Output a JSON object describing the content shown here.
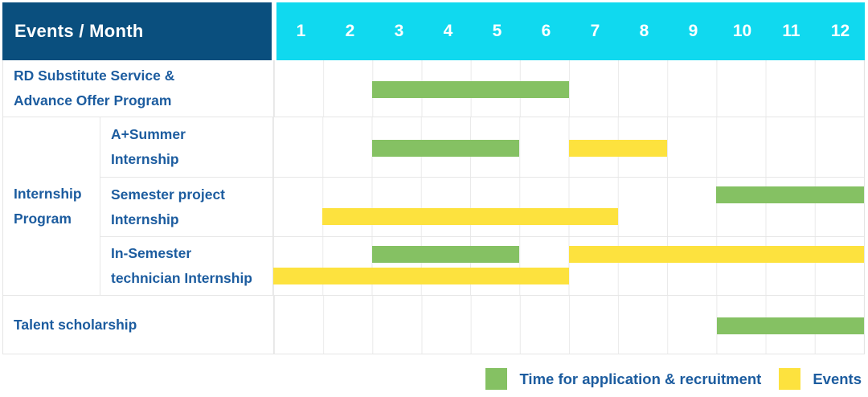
{
  "colors": {
    "header_bg": "#0a4f7e",
    "months_bg": "#10d9ef",
    "label_text": "#1c5c9f",
    "green": "#85c163",
    "yellow": "#fde23e",
    "grid_line": "#eaeaea"
  },
  "header": {
    "title": "Events / Month",
    "months": [
      "1",
      "2",
      "3",
      "4",
      "5",
      "6",
      "7",
      "8",
      "9",
      "10",
      "11",
      "12"
    ]
  },
  "rows": {
    "rd": {
      "label": "RD Substitute Service &\nAdvance Offer Program"
    },
    "internship_group": {
      "label": "Internship\nProgram"
    },
    "a_summer": {
      "label": "A+Summer\nInternship"
    },
    "semester_project": {
      "label": "Semester project\nInternship"
    },
    "in_semester": {
      "label": "In-Semester\ntechnician Internship"
    },
    "talent": {
      "label": "Talent scholarship"
    }
  },
  "legend": {
    "application": "Time for application & recruitment",
    "events": "Events"
  },
  "chart_data": {
    "type": "bar",
    "variant": "gantt",
    "title": "Events / Month",
    "x_axis": {
      "label": "Month",
      "ticks": [
        1,
        2,
        3,
        4,
        5,
        6,
        7,
        8,
        9,
        10,
        11,
        12
      ],
      "range": [
        1,
        13
      ],
      "grid": true
    },
    "series_colors": {
      "Time for application & recruitment": "#85c163",
      "Events": "#fde23e"
    },
    "rows": [
      {
        "category": "RD Substitute Service & Advance Offer Program",
        "bars": [
          {
            "series": "Time for application & recruitment",
            "start": 3,
            "end": 7,
            "lane": "mid"
          }
        ]
      },
      {
        "category": "Internship Program / A+Summer Internship",
        "bars": [
          {
            "series": "Time for application & recruitment",
            "start": 3,
            "end": 6,
            "lane": "mid"
          },
          {
            "series": "Events",
            "start": 7,
            "end": 9,
            "lane": "mid"
          }
        ]
      },
      {
        "category": "Internship Program / Semester project Internship",
        "bars": [
          {
            "series": "Time for application & recruitment",
            "start": 10,
            "end": 13,
            "lane": "upper"
          },
          {
            "series": "Events",
            "start": 2,
            "end": 8,
            "lane": "lower"
          }
        ]
      },
      {
        "category": "Internship Program / In-Semester technician Internship",
        "bars": [
          {
            "series": "Time for application & recruitment",
            "start": 3,
            "end": 6,
            "lane": "upper"
          },
          {
            "series": "Events",
            "start": 7,
            "end": 13,
            "lane": "upper"
          },
          {
            "series": "Events",
            "start": 1,
            "end": 7,
            "lane": "lower"
          }
        ]
      },
      {
        "category": "Talent scholarship",
        "bars": [
          {
            "series": "Time for application & recruitment",
            "start": 10,
            "end": 13,
            "lane": "mid"
          }
        ]
      }
    ],
    "legend": [
      "Time for application & recruitment",
      "Events"
    ],
    "legend_position": "bottom-right"
  }
}
